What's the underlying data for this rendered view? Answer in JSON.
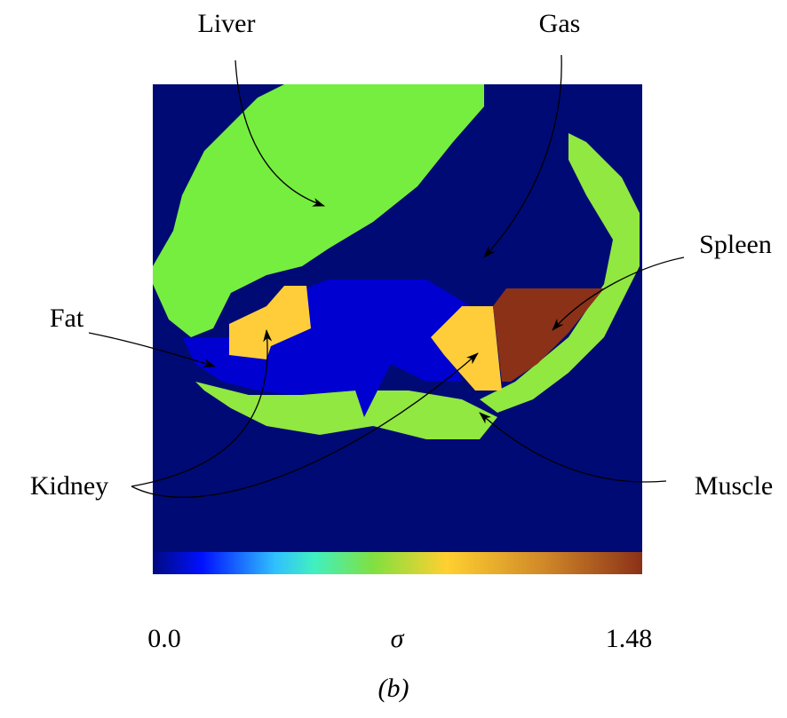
{
  "labels": {
    "liver": "Liver",
    "gas": "Gas",
    "spleen": "Spleen",
    "fat": "Fat",
    "kidney": "Kidney",
    "muscle": "Muscle"
  },
  "colorbar": {
    "min_label": "0.0",
    "symbol": "σ",
    "max_label": "1.48"
  },
  "caption": "(b)"
}
